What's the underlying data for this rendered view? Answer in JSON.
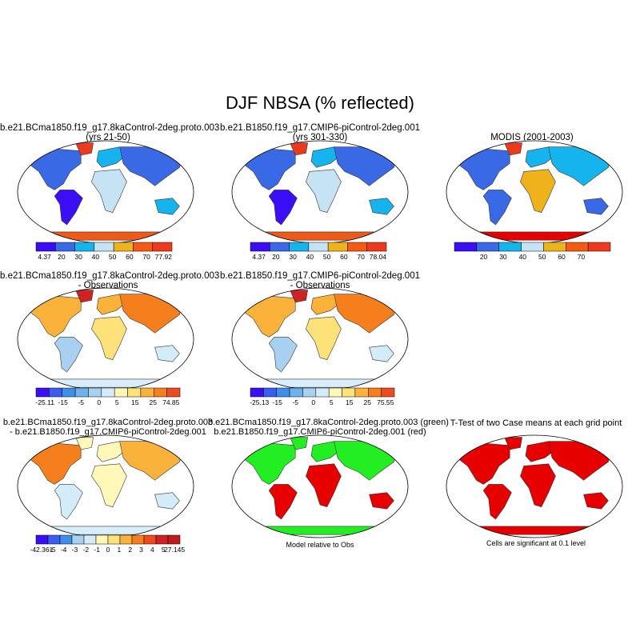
{
  "title": "DJF NBSA (% reflected)",
  "colors": {
    "abs_scale": [
      "#3b0ef6",
      "#3a69e6",
      "#15b4ee",
      "#c6e3f5",
      "#f0b21a",
      "#f45a12",
      "#ee3a1c",
      "#cc2a2a"
    ],
    "diff_scale": [
      "#3b0ef6",
      "#3a5ef0",
      "#3e8fe8",
      "#6fb1ec",
      "#a8d0f0",
      "#d3ecfa",
      "#fff8b8",
      "#fde27a",
      "#fbb23b",
      "#f57f1d",
      "#ee4a1e",
      "#cf2222"
    ],
    "model_green": "#22ee22",
    "model_red": "#e60000",
    "ocean": "#ffffff",
    "antarctica_abs": "#ee5a18",
    "antarctica_diff": "#d9eefb"
  },
  "panels": [
    {
      "title1": "b.e21.BCma1850.f19_g17.8kaControl-2deg.proto.003",
      "title2": "(yrs 21-50)",
      "colorbar": {
        "labels": [
          "4.37",
          "20",
          "30",
          "40",
          "50",
          "60",
          "70",
          "77.92"
        ]
      }
    },
    {
      "title1": "b.e21.B1850.f19_g17.CMIP6-piControl-2deg.001",
      "title2": "(yrs 301-330)",
      "colorbar": {
        "labels": [
          "4.37",
          "20",
          "30",
          "40",
          "50",
          "60",
          "70",
          "78.04"
        ]
      }
    },
    {
      "title1": "MODIS (2001-2003)",
      "title2": "",
      "colorbar": {
        "labels": [
          "",
          "20",
          "30",
          "40",
          "50",
          "60",
          "70",
          ""
        ]
      }
    },
    {
      "title1": "b.e21.BCma1850.f19_g17.8kaControl-2deg.proto.003",
      "title2": "- Observations",
      "colorbar": {
        "labels": [
          "-25.11",
          "-15",
          "-5",
          "0",
          "5",
          "15",
          "25",
          "74.85"
        ]
      }
    },
    {
      "title1": "b.e21.B1850.f19_g17.CMIP6-piControl-2deg.001",
      "title2": "- Observations",
      "colorbar": {
        "labels": [
          "-25.13",
          "-15",
          "-5",
          "0",
          "5",
          "15",
          "25",
          "75.55"
        ]
      }
    },
    {
      "title1": "b.e21.BCma1850.f19_g17.8kaControl-2deg.proto.003",
      "title2": "- b.e21.B1850.f19_g17.CMIP6-piControl-2deg.001",
      "colorbar": {
        "labels": [
          "-42.361",
          "-5",
          "-4",
          "-3",
          "-2",
          "-1",
          "0",
          "1",
          "2",
          "3",
          "4",
          "5",
          "27.145"
        ]
      }
    },
    {
      "title1": "b.e21.BCma1850.f19_g17.8kaControl-2deg.proto.003 (green)",
      "title2": "b.e21.B1850.f19_g17.CMIP6-piControl-2deg.001 (red)",
      "note": "Model relative to Obs"
    },
    {
      "title1": "T-Test of two Case means at each grid point",
      "title2": "",
      "note": "Cells are significant at 0.1 level"
    }
  ],
  "chart_data": [
    {
      "type": "heatmap",
      "title": "b.e21.BCma1850.f19_g17.8kaControl-2deg.proto.003 (yrs 21-50)",
      "colorbar_levels": [
        20,
        30,
        40,
        50,
        60,
        70
      ],
      "range": [
        4.37,
        77.92
      ]
    },
    {
      "type": "heatmap",
      "title": "b.e21.B1850.f19_g17.CMIP6-piControl-2deg.001 (yrs 301-330)",
      "colorbar_levels": [
        20,
        30,
        40,
        50,
        60,
        70
      ],
      "range": [
        4.37,
        78.04
      ]
    },
    {
      "type": "heatmap",
      "title": "MODIS (2001-2003)",
      "colorbar_levels": [
        20,
        30,
        40,
        50,
        60,
        70
      ]
    },
    {
      "type": "heatmap",
      "title": "b.e21.BCma1850.f19_g17.8kaControl-2deg.proto.003 - Observations",
      "colorbar_levels": [
        -15,
        -5,
        0,
        5,
        15,
        25
      ],
      "range": [
        -25.11,
        74.85
      ]
    },
    {
      "type": "heatmap",
      "title": "b.e21.B1850.f19_g17.CMIP6-piControl-2deg.001 - Observations",
      "colorbar_levels": [
        -15,
        -5,
        0,
        5,
        15,
        25
      ],
      "range": [
        -25.13,
        75.55
      ]
    },
    {
      "type": "heatmap",
      "title": "b.e21.BCma1850.f19_g17.8kaControl-2deg.proto.003 - b.e21.B1850.f19_g17.CMIP6-piControl-2deg.001",
      "colorbar_levels": [
        -5,
        -4,
        -3,
        -2,
        -1,
        0,
        1,
        2,
        3,
        4,
        5
      ],
      "range": [
        -42.361,
        27.145
      ]
    },
    {
      "type": "heatmap",
      "title": "Model relative to Obs",
      "series": [
        {
          "name": "b.e21.BCma1850.f19_g17.8kaControl-2deg.proto.003 (green)"
        },
        {
          "name": "b.e21.B1850.f19_g17.CMIP6-piControl-2deg.001 (red)"
        }
      ]
    },
    {
      "type": "heatmap",
      "title": "T-Test of two Case means at each grid point",
      "note": "Cells are significant at 0.1 level"
    }
  ]
}
